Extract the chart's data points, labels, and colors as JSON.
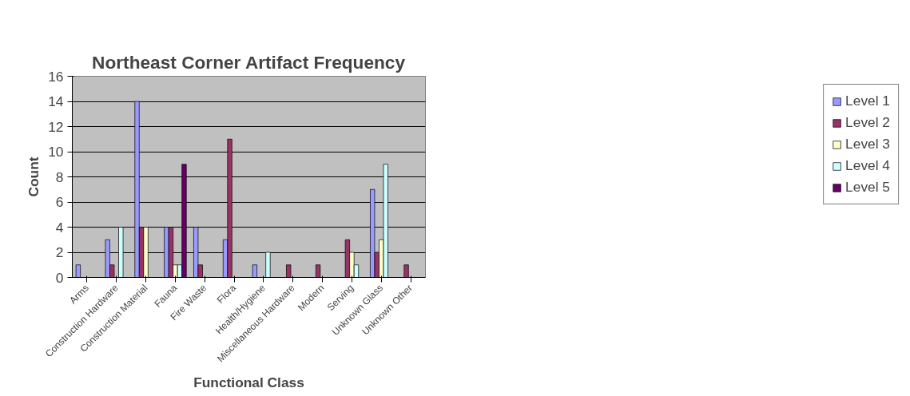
{
  "chart_data": {
    "type": "bar",
    "title": "Northeast Corner Artifact Frequency",
    "xlabel": "Functional Class",
    "ylabel": "Count",
    "categories": [
      "Arms",
      "Construction Hardware",
      "Construction Material",
      "Fauna",
      "Fire Waste",
      "Flora",
      "Health/Hygiene",
      "Miscellaneous Hardware",
      "Modern",
      "Serving",
      "Unknown Glass",
      "Unknown Other"
    ],
    "series": [
      {
        "name": "Level 1",
        "color": "#9999ff",
        "values": [
          1,
          3,
          14,
          4,
          4,
          3,
          1,
          null,
          null,
          null,
          7,
          null
        ]
      },
      {
        "name": "Level 2",
        "color": "#993366",
        "values": [
          null,
          1,
          4,
          4,
          1,
          11,
          null,
          1,
          1,
          3,
          2,
          1
        ]
      },
      {
        "name": "Level 3",
        "color": "#ffffcc",
        "values": [
          null,
          null,
          4,
          1,
          null,
          null,
          null,
          null,
          null,
          2,
          3,
          null
        ]
      },
      {
        "name": "Level 4",
        "color": "#ccffff",
        "values": [
          null,
          4,
          null,
          1,
          null,
          null,
          2,
          null,
          null,
          1,
          9,
          null
        ]
      },
      {
        "name": "Level 5",
        "color": "#660066",
        "values": [
          null,
          null,
          null,
          9,
          null,
          null,
          null,
          null,
          null,
          null,
          null,
          null
        ]
      }
    ],
    "ylim": [
      0,
      16
    ],
    "yticks": [
      0,
      2,
      4,
      6,
      8,
      10,
      12,
      14,
      16
    ],
    "grid": "y",
    "legend": "right"
  }
}
